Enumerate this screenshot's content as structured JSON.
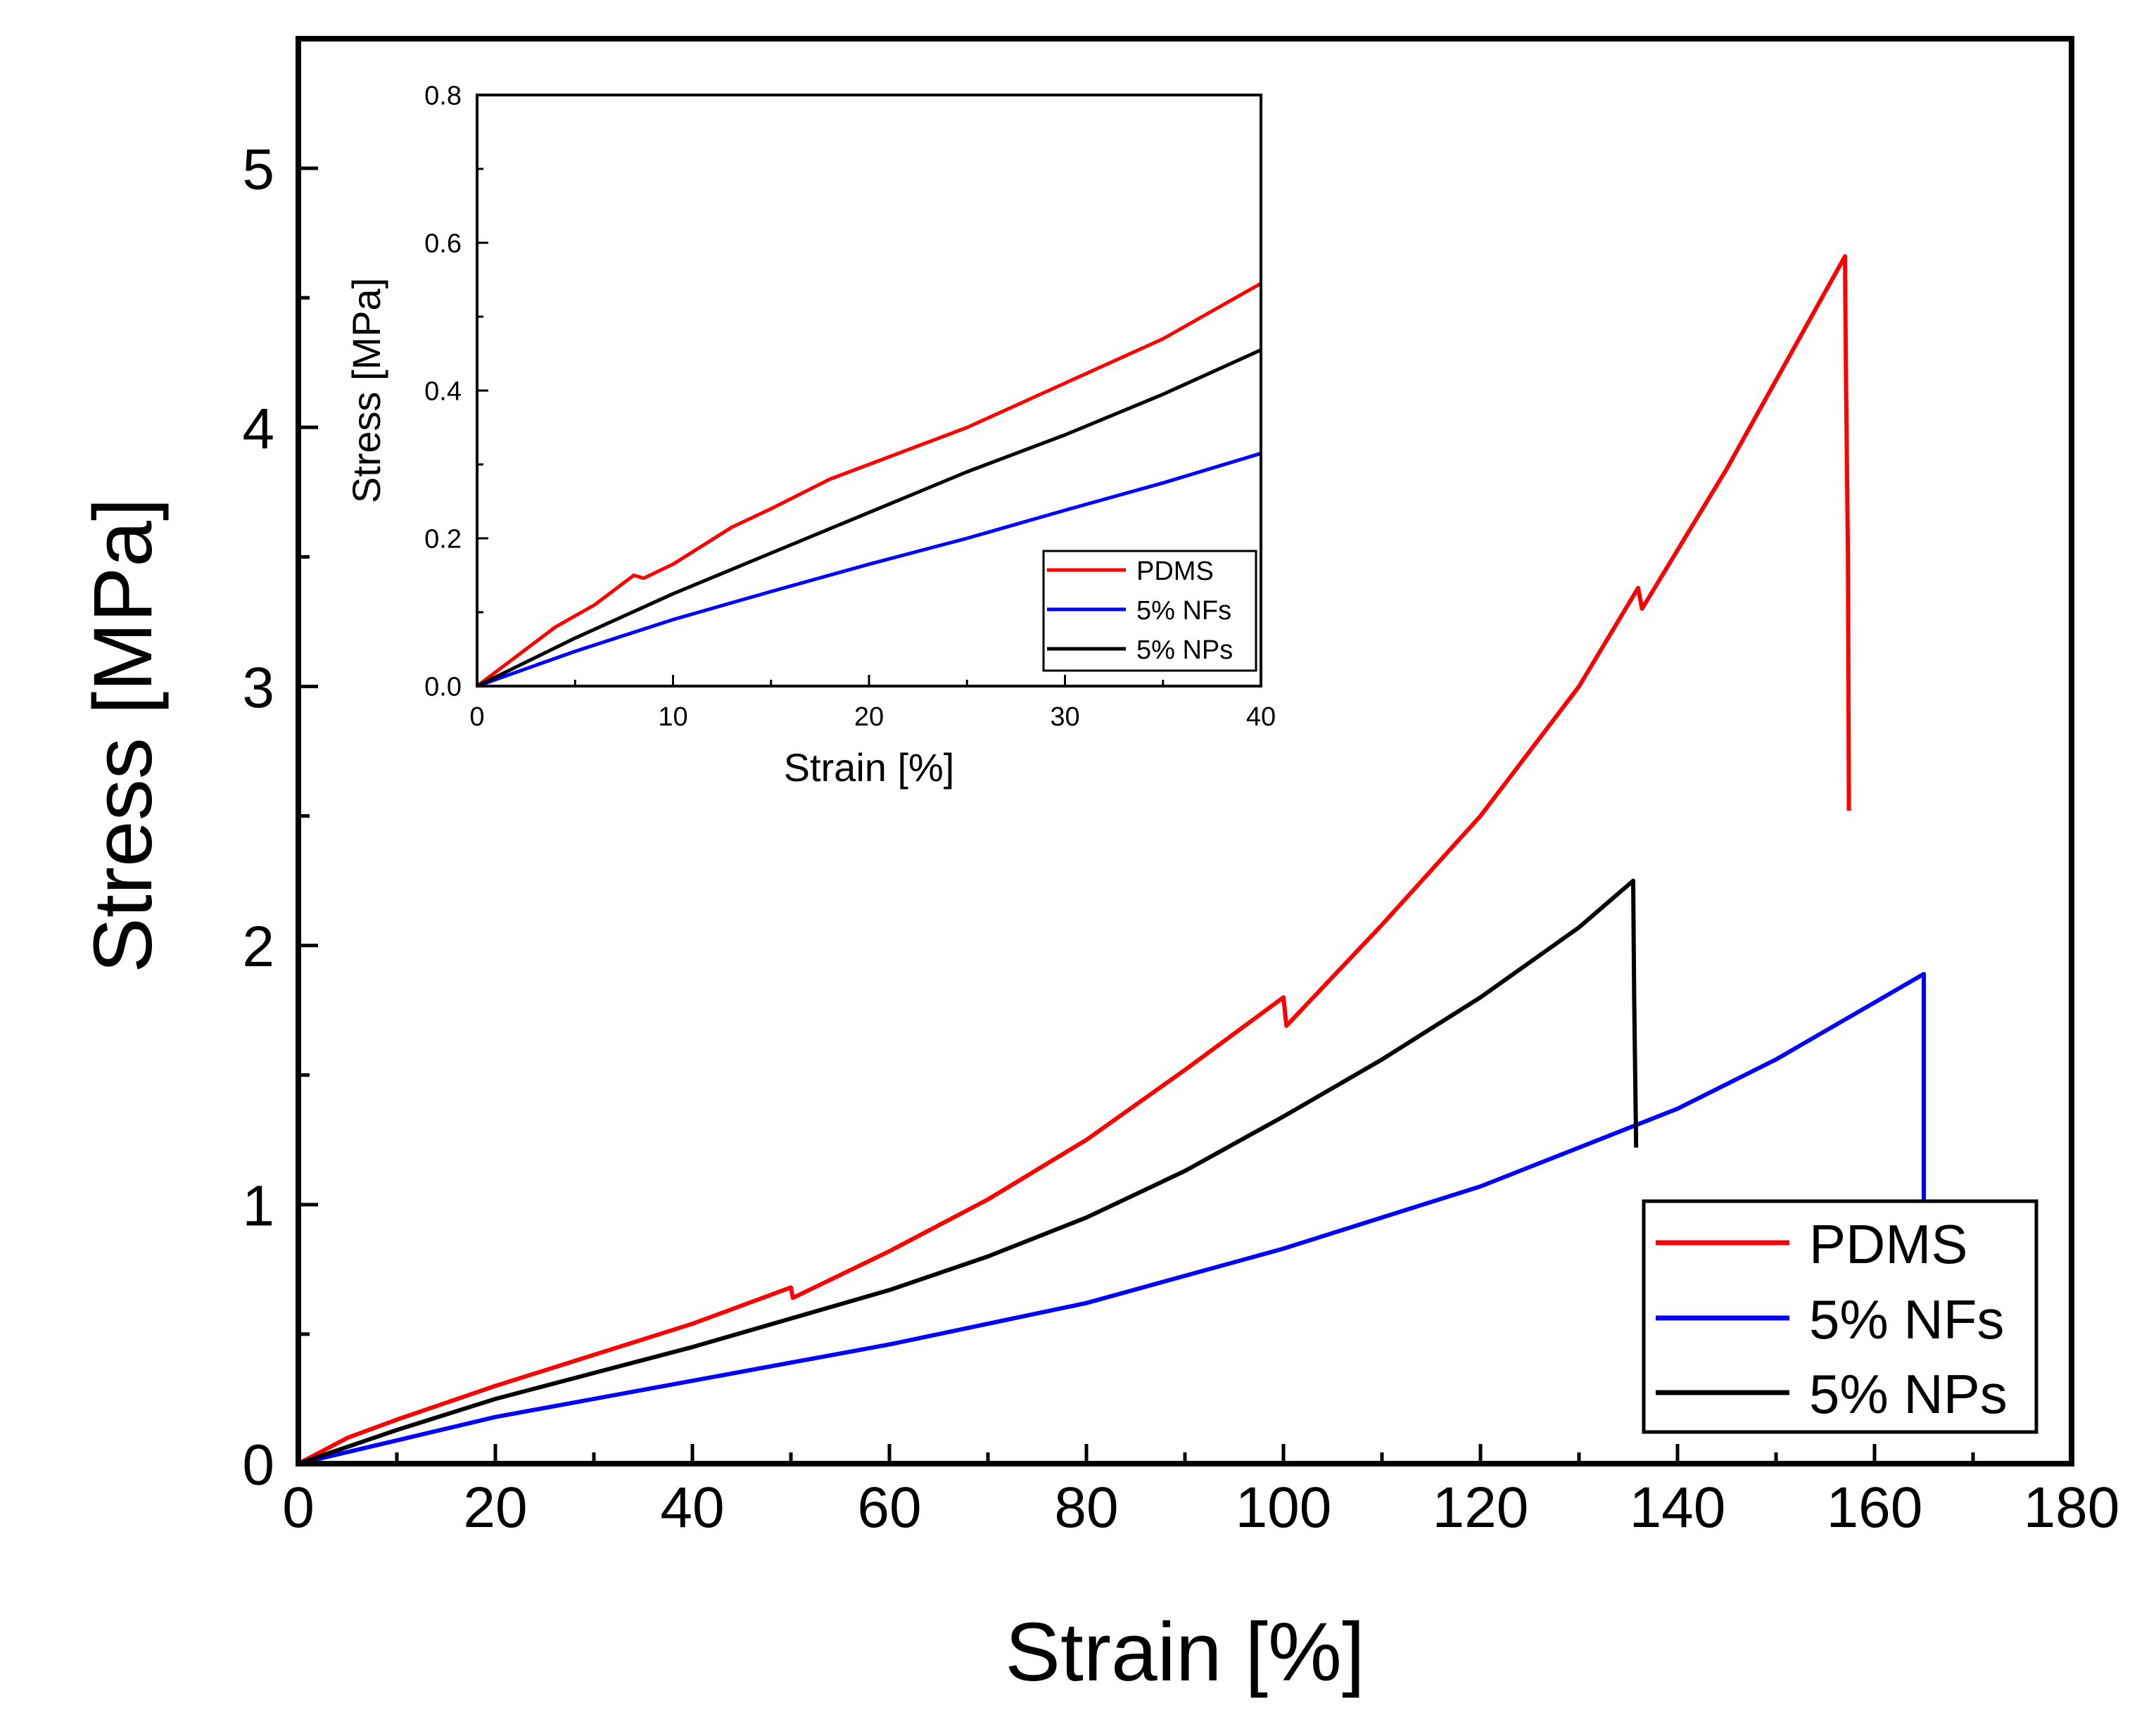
{
  "chart_data": [
    {
      "id": "main",
      "type": "line",
      "xlabel": "Strain [%]",
      "ylabel": "Stress [MPa]",
      "xlim": [
        0,
        180
      ],
      "ylim": [
        0,
        5.5
      ],
      "xticks": [
        0,
        20,
        40,
        60,
        80,
        100,
        120,
        140,
        160,
        180
      ],
      "yticks": [
        0,
        1,
        2,
        3,
        4,
        5
      ],
      "legend_position": "bottom-right",
      "series": [
        {
          "name": "PDMS",
          "color": "#ff0000",
          "points": [
            [
              0,
              0
            ],
            [
              5,
              0.1
            ],
            [
              10,
              0.17
            ],
            [
              20,
              0.3
            ],
            [
              30,
              0.42
            ],
            [
              40,
              0.54
            ],
            [
              50,
              0.68
            ],
            [
              50.2,
              0.64
            ],
            [
              60,
              0.82
            ],
            [
              70,
              1.02
            ],
            [
              80,
              1.25
            ],
            [
              90,
              1.52
            ],
            [
              100,
              1.8
            ],
            [
              100.3,
              1.69
            ],
            [
              110,
              2.08
            ],
            [
              120,
              2.5
            ],
            [
              130,
              3.0
            ],
            [
              136,
              3.38
            ],
            [
              136.4,
              3.3
            ],
            [
              145,
              3.84
            ],
            [
              157,
              4.66
            ],
            [
              157.1,
              4.2
            ],
            [
              157.3,
              3.5
            ],
            [
              157.4,
              2.52
            ]
          ]
        },
        {
          "name": "5% NFs",
          "color": "#0000ff",
          "points": [
            [
              0,
              0
            ],
            [
              10,
              0.09
            ],
            [
              20,
              0.18
            ],
            [
              40,
              0.32
            ],
            [
              60,
              0.46
            ],
            [
              80,
              0.62
            ],
            [
              100,
              0.83
            ],
            [
              120,
              1.07
            ],
            [
              140,
              1.37
            ],
            [
              150,
              1.56
            ],
            [
              165,
              1.89
            ],
            [
              165,
              1.5
            ],
            [
              165,
              1.02
            ]
          ]
        },
        {
          "name": "5% NPs",
          "color": "#000000",
          "points": [
            [
              0,
              0
            ],
            [
              10,
              0.13
            ],
            [
              20,
              0.25
            ],
            [
              30,
              0.35
            ],
            [
              40,
              0.45
            ],
            [
              50,
              0.56
            ],
            [
              60,
              0.67
            ],
            [
              70,
              0.8
            ],
            [
              80,
              0.95
            ],
            [
              90,
              1.13
            ],
            [
              100,
              1.34
            ],
            [
              110,
              1.56
            ],
            [
              120,
              1.8
            ],
            [
              130,
              2.07
            ],
            [
              135.5,
              2.25
            ],
            [
              135.6,
              1.8
            ],
            [
              135.8,
              1.22
            ]
          ]
        }
      ]
    },
    {
      "id": "inset",
      "type": "line",
      "xlabel": "Strain [%]",
      "ylabel": "Stress [MPa]",
      "xlim": [
        0,
        40
      ],
      "ylim": [
        0,
        0.8
      ],
      "xticks": [
        0,
        10,
        20,
        30,
        40
      ],
      "yticks": [
        0.0,
        0.2,
        0.4,
        0.6,
        0.8
      ],
      "ytick_labels": [
        "0.0",
        "0.2",
        "0.4",
        "0.6",
        "0.8"
      ],
      "legend_position": "bottom-right",
      "series": [
        {
          "name": "PDMS",
          "color": "#ff0000",
          "points": [
            [
              0,
              0
            ],
            [
              2,
              0.04
            ],
            [
              4,
              0.08
            ],
            [
              6,
              0.11
            ],
            [
              8,
              0.15
            ],
            [
              8.5,
              0.146
            ],
            [
              10,
              0.165
            ],
            [
              13,
              0.215
            ],
            [
              15,
              0.24
            ],
            [
              18,
              0.28
            ],
            [
              20,
              0.3
            ],
            [
              25,
              0.35
            ],
            [
              30,
              0.41
            ],
            [
              35,
              0.47
            ],
            [
              40,
              0.545
            ]
          ]
        },
        {
          "name": "5% NFs",
          "color": "#0000ff",
          "points": [
            [
              0,
              0
            ],
            [
              5,
              0.047
            ],
            [
              10,
              0.09
            ],
            [
              15,
              0.128
            ],
            [
              20,
              0.165
            ],
            [
              25,
              0.2
            ],
            [
              30,
              0.238
            ],
            [
              35,
              0.275
            ],
            [
              40,
              0.315
            ]
          ]
        },
        {
          "name": "5% NPs",
          "color": "#000000",
          "points": [
            [
              0,
              0
            ],
            [
              5,
              0.065
            ],
            [
              10,
              0.125
            ],
            [
              15,
              0.18
            ],
            [
              20,
              0.235
            ],
            [
              25,
              0.29
            ],
            [
              30,
              0.34
            ],
            [
              35,
              0.395
            ],
            [
              40,
              0.455
            ]
          ]
        }
      ]
    }
  ]
}
